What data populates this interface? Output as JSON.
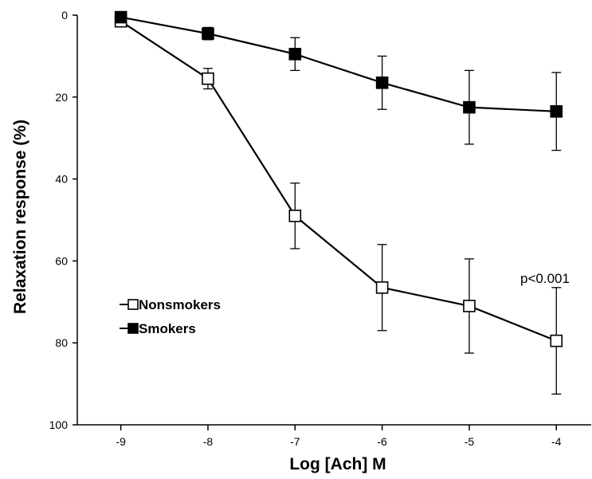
{
  "chart_data": {
    "type": "line",
    "xlabel": "Log [Ach] M",
    "ylabel": "Relaxation response (%)",
    "x": [
      -9,
      -8,
      -7,
      -6,
      -5,
      -4
    ],
    "x_tick_labels": [
      "-9",
      "-8",
      "-7",
      "-6",
      "-5",
      "-4"
    ],
    "xlim": [
      -9.5,
      -3.6
    ],
    "ylim": [
      0,
      100
    ],
    "y_inverted": true,
    "y_ticks": [
      0,
      20,
      40,
      60,
      80,
      100
    ],
    "y_tick_labels": [
      "0",
      "20",
      "40",
      "60",
      "80",
      "100"
    ],
    "grid": false,
    "legend_position": "left",
    "series": [
      {
        "name": "Nonsmokers",
        "marker": "open-square",
        "values": [
          1.5,
          15.5,
          49,
          66.5,
          71,
          79.5
        ],
        "error": [
          1,
          2.5,
          8,
          10.5,
          11.5,
          13
        ]
      },
      {
        "name": "Smokers",
        "marker": "filled-square",
        "values": [
          0.5,
          4.5,
          9.5,
          16.5,
          22.5,
          23.5
        ],
        "error": [
          1,
          1.5,
          4,
          6.5,
          9,
          9.5
        ]
      }
    ],
    "annotations": [
      {
        "text": "p<0.001",
        "x": -4,
        "y": 64
      }
    ]
  }
}
